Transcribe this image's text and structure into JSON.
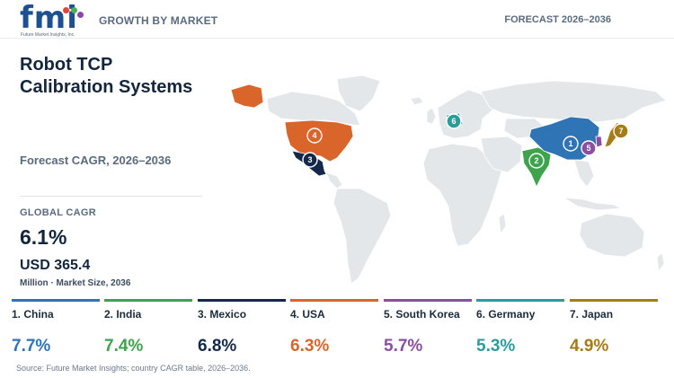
{
  "header": {
    "logo_text": "fmi",
    "logo_tagline": "Future Market Insights, Inc.",
    "section_label": "GROWTH BY MARKET",
    "forecast_label": "FORECAST 2026–2036"
  },
  "title": "Robot TCP Calibration Systems",
  "subtitle": "Forecast CAGR, 2026–2036",
  "global_cagr": {
    "label": "GLOBAL CAGR",
    "value": "6.1%"
  },
  "market_size": {
    "value": "USD 365.4",
    "label": "Million · Market Size, 2036"
  },
  "map": {
    "base_color": "#e4e7ea",
    "markers": [
      {
        "rank": "1",
        "country": "China",
        "color": "#2f74b5"
      },
      {
        "rank": "2",
        "country": "India",
        "color": "#3fa34d"
      },
      {
        "rank": "3",
        "country": "Mexico",
        "color": "#14294a"
      },
      {
        "rank": "4",
        "country": "USA",
        "color": "#d9652b"
      },
      {
        "rank": "5",
        "country": "South Korea",
        "color": "#8a4ea3"
      },
      {
        "rank": "6",
        "country": "Germany",
        "color": "#2a9d9a"
      },
      {
        "rank": "7",
        "country": "Japan",
        "color": "#a57c15"
      }
    ]
  },
  "countries": [
    {
      "label": "1. China",
      "cagr": "7.7%",
      "color": "#2f74b5"
    },
    {
      "label": "2. India",
      "cagr": "7.4%",
      "color": "#3fa34d"
    },
    {
      "label": "3. Mexico",
      "cagr": "6.8%",
      "color": "#14294a"
    },
    {
      "label": "4. USA",
      "cagr": "6.3%",
      "color": "#d9652b"
    },
    {
      "label": "5. South Korea",
      "cagr": "5.7%",
      "color": "#8a4ea3"
    },
    {
      "label": "6. Germany",
      "cagr": "5.3%",
      "color": "#2a9d9a"
    },
    {
      "label": "7. Japan",
      "cagr": "4.9%",
      "color": "#a57c15"
    }
  ],
  "source": "Source: Future Market Insights; country CAGR table, 2026–2036."
}
